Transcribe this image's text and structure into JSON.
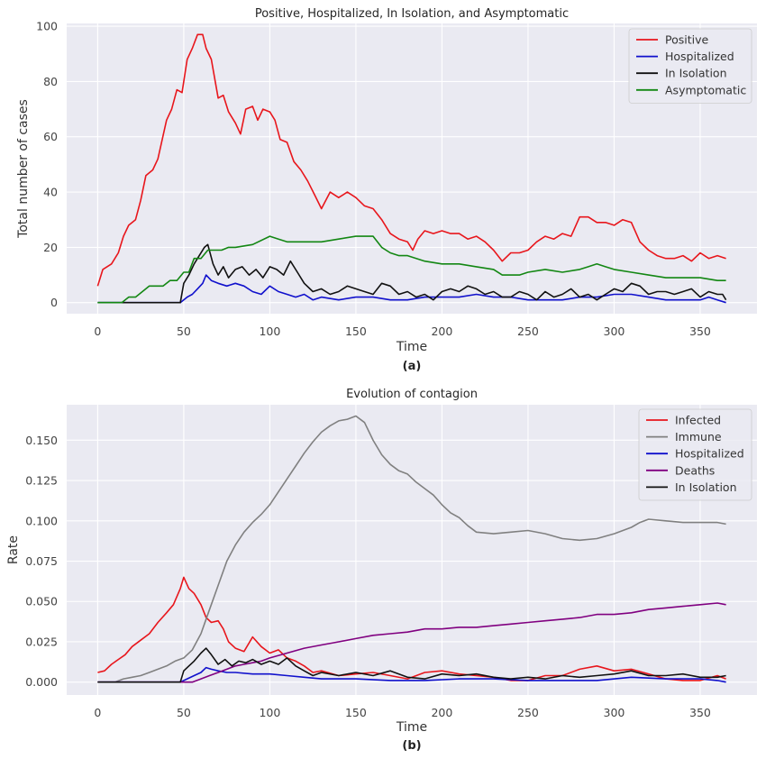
{
  "chart_data": [
    {
      "type": "line",
      "title": "Positive, Hospitalized, In Isolation, and Asymptomatic",
      "xlabel": "Time",
      "ylabel": "Total number of cases",
      "caption": "(a)",
      "xlim": [
        -18,
        383
      ],
      "ylim": [
        -4,
        101
      ],
      "xticks": [
        0,
        50,
        100,
        150,
        200,
        250,
        300,
        350
      ],
      "yticks": [
        0,
        20,
        40,
        60,
        80,
        100
      ],
      "ytick_labels": [
        "0",
        "20",
        "40",
        "60",
        "80",
        "100"
      ],
      "legend_position": "upper right",
      "grid": true,
      "series": [
        {
          "name": "Positive",
          "color": "#e8161c",
          "x": [
            0,
            3,
            8,
            12,
            15,
            18,
            22,
            25,
            28,
            32,
            35,
            40,
            43,
            46,
            49,
            52,
            55,
            58,
            61,
            63,
            66,
            70,
            73,
            76,
            80,
            83,
            86,
            90,
            93,
            96,
            100,
            103,
            106,
            110,
            114,
            118,
            122,
            126,
            130,
            135,
            140,
            145,
            150,
            155,
            160,
            165,
            170,
            175,
            180,
            183,
            186,
            190,
            195,
            200,
            205,
            210,
            215,
            220,
            225,
            230,
            235,
            240,
            245,
            250,
            255,
            260,
            265,
            270,
            275,
            280,
            285,
            290,
            295,
            300,
            305,
            310,
            315,
            320,
            325,
            330,
            335,
            340,
            345,
            350,
            355,
            360,
            365
          ],
          "y": [
            6,
            12,
            14,
            18,
            24,
            28,
            30,
            37,
            46,
            48,
            52,
            66,
            70,
            77,
            76,
            88,
            92,
            97,
            97,
            92,
            88,
            74,
            75,
            69,
            65,
            61,
            70,
            71,
            66,
            70,
            69,
            66,
            59,
            58,
            51,
            48,
            44,
            39,
            34,
            40,
            38,
            40,
            38,
            35,
            34,
            30,
            25,
            23,
            22,
            19,
            23,
            26,
            25,
            26,
            25,
            25,
            23,
            24,
            22,
            19,
            15,
            18,
            18,
            19,
            22,
            24,
            23,
            25,
            24,
            31,
            31,
            29,
            29,
            28,
            30,
            29,
            22,
            19,
            17,
            16,
            16,
            17,
            15,
            18,
            16,
            17,
            16
          ]
        },
        {
          "name": "Hospitalized",
          "color": "#1010cc",
          "x": [
            0,
            48,
            52,
            55,
            58,
            61,
            63,
            66,
            70,
            75,
            80,
            85,
            90,
            95,
            100,
            105,
            110,
            115,
            120,
            125,
            130,
            140,
            150,
            160,
            170,
            180,
            190,
            200,
            210,
            220,
            230,
            240,
            250,
            260,
            270,
            280,
            290,
            300,
            310,
            320,
            330,
            340,
            350,
            355,
            360,
            365
          ],
          "y": [
            0,
            0,
            2,
            3,
            5,
            7,
            10,
            8,
            7,
            6,
            7,
            6,
            4,
            3,
            6,
            4,
            3,
            2,
            3,
            1,
            2,
            1,
            2,
            2,
            1,
            1,
            2,
            2,
            2,
            3,
            2,
            2,
            1,
            1,
            1,
            2,
            2,
            3,
            3,
            2,
            1,
            1,
            1,
            2,
            1,
            0
          ]
        },
        {
          "name": "In Isolation",
          "color": "#111111",
          "x": [
            0,
            48,
            50,
            53,
            56,
            59,
            62,
            64,
            67,
            70,
            73,
            76,
            80,
            84,
            88,
            92,
            96,
            100,
            104,
            108,
            112,
            116,
            120,
            125,
            130,
            135,
            140,
            145,
            150,
            155,
            160,
            165,
            170,
            175,
            180,
            185,
            190,
            195,
            200,
            205,
            210,
            215,
            220,
            225,
            230,
            235,
            240,
            245,
            250,
            255,
            260,
            265,
            270,
            275,
            280,
            285,
            290,
            295,
            300,
            305,
            310,
            315,
            320,
            325,
            330,
            335,
            340,
            345,
            350,
            355,
            360,
            363,
            365
          ],
          "y": [
            0,
            0,
            7,
            10,
            14,
            17,
            20,
            21,
            14,
            10,
            13,
            9,
            12,
            13,
            10,
            12,
            9,
            13,
            12,
            10,
            15,
            11,
            7,
            4,
            5,
            3,
            4,
            6,
            5,
            4,
            3,
            7,
            6,
            3,
            4,
            2,
            3,
            1,
            4,
            5,
            4,
            6,
            5,
            3,
            4,
            2,
            2,
            4,
            3,
            1,
            4,
            2,
            3,
            5,
            2,
            3,
            1,
            3,
            5,
            4,
            7,
            6,
            3,
            4,
            4,
            3,
            4,
            5,
            2,
            4,
            3,
            3,
            1
          ]
        },
        {
          "name": "Asymptomatic",
          "color": "#138713",
          "x": [
            0,
            14,
            18,
            22,
            26,
            30,
            34,
            38,
            42,
            46,
            50,
            53,
            56,
            60,
            64,
            68,
            72,
            76,
            80,
            90,
            100,
            105,
            110,
            120,
            130,
            140,
            150,
            160,
            165,
            170,
            175,
            180,
            190,
            200,
            210,
            220,
            230,
            235,
            240,
            245,
            250,
            260,
            270,
            280,
            285,
            290,
            295,
            300,
            310,
            320,
            330,
            340,
            350,
            360,
            365
          ],
          "y": [
            0,
            0,
            2,
            2,
            4,
            6,
            6,
            6,
            8,
            8,
            11,
            11,
            16,
            16,
            19,
            19,
            19,
            20,
            20,
            21,
            24,
            23,
            22,
            22,
            22,
            23,
            24,
            24,
            20,
            18,
            17,
            17,
            15,
            14,
            14,
            13,
            12,
            10,
            10,
            10,
            11,
            12,
            11,
            12,
            13,
            14,
            13,
            12,
            11,
            10,
            9,
            9,
            9,
            8,
            8
          ]
        }
      ]
    },
    {
      "type": "line",
      "title": "Evolution of contagion",
      "xlabel": "Time",
      "ylabel": "Rate",
      "caption": "(b)",
      "xlim": [
        -18,
        383
      ],
      "ylim": [
        -0.008,
        0.172
      ],
      "xticks": [
        0,
        50,
        100,
        150,
        200,
        250,
        300,
        350
      ],
      "yticks": [
        0,
        0.025,
        0.05,
        0.075,
        0.1,
        0.125,
        0.15
      ],
      "ytick_labels": [
        "0.000",
        "0.025",
        "0.050",
        "0.075",
        "0.100",
        "0.125",
        "0.150"
      ],
      "legend_position": "upper right",
      "grid": true,
      "series": [
        {
          "name": "Infected",
          "color": "#e8161c",
          "x": [
            0,
            4,
            8,
            12,
            16,
            20,
            25,
            30,
            35,
            40,
            44,
            48,
            50,
            53,
            56,
            60,
            63,
            66,
            70,
            73,
            76,
            80,
            85,
            90,
            95,
            100,
            105,
            110,
            115,
            120,
            125,
            130,
            140,
            150,
            160,
            170,
            180,
            190,
            200,
            210,
            220,
            230,
            240,
            250,
            260,
            270,
            280,
            290,
            300,
            310,
            320,
            330,
            340,
            350,
            360,
            365
          ],
          "y": [
            0.006,
            0.007,
            0.011,
            0.014,
            0.017,
            0.022,
            0.026,
            0.03,
            0.037,
            0.043,
            0.048,
            0.058,
            0.065,
            0.058,
            0.055,
            0.048,
            0.04,
            0.037,
            0.038,
            0.033,
            0.025,
            0.021,
            0.019,
            0.028,
            0.022,
            0.018,
            0.02,
            0.015,
            0.013,
            0.01,
            0.006,
            0.007,
            0.004,
            0.005,
            0.006,
            0.004,
            0.002,
            0.006,
            0.007,
            0.005,
            0.004,
            0.003,
            0.001,
            0.001,
            0.004,
            0.004,
            0.008,
            0.01,
            0.007,
            0.008,
            0.005,
            0.002,
            0.001,
            0.001,
            0.004,
            0.002
          ]
        },
        {
          "name": "Immune",
          "color": "#808080",
          "x": [
            0,
            10,
            15,
            20,
            25,
            30,
            35,
            40,
            45,
            50,
            55,
            60,
            65,
            70,
            75,
            80,
            85,
            90,
            95,
            100,
            105,
            110,
            115,
            120,
            125,
            130,
            135,
            140,
            145,
            150,
            155,
            160,
            165,
            170,
            175,
            180,
            185,
            190,
            195,
            200,
            205,
            210,
            215,
            220,
            230,
            240,
            250,
            260,
            270,
            280,
            290,
            300,
            310,
            315,
            320,
            330,
            340,
            350,
            360,
            365
          ],
          "y": [
            0,
            0,
            0.002,
            0.003,
            0.004,
            0.006,
            0.008,
            0.01,
            0.013,
            0.015,
            0.02,
            0.03,
            0.045,
            0.06,
            0.075,
            0.085,
            0.093,
            0.099,
            0.104,
            0.11,
            0.118,
            0.126,
            0.134,
            0.142,
            0.149,
            0.155,
            0.159,
            0.162,
            0.163,
            0.165,
            0.161,
            0.15,
            0.141,
            0.135,
            0.131,
            0.129,
            0.124,
            0.12,
            0.116,
            0.11,
            0.105,
            0.102,
            0.097,
            0.093,
            0.092,
            0.093,
            0.094,
            0.092,
            0.089,
            0.088,
            0.089,
            0.092,
            0.096,
            0.099,
            0.101,
            0.1,
            0.099,
            0.099,
            0.099,
            0.098
          ]
        },
        {
          "name": "Hospitalized",
          "color": "#1010cc",
          "x": [
            0,
            48,
            52,
            56,
            60,
            63,
            66,
            70,
            75,
            80,
            90,
            100,
            110,
            120,
            130,
            150,
            170,
            190,
            210,
            230,
            250,
            270,
            290,
            310,
            330,
            350,
            360,
            365
          ],
          "y": [
            0,
            0,
            0.002,
            0.004,
            0.006,
            0.009,
            0.008,
            0.007,
            0.006,
            0.006,
            0.005,
            0.005,
            0.004,
            0.003,
            0.002,
            0.002,
            0.001,
            0.001,
            0.002,
            0.002,
            0.001,
            0.001,
            0.001,
            0.003,
            0.002,
            0.002,
            0.001,
            0
          ]
        },
        {
          "name": "Deaths",
          "color": "#800080",
          "x": [
            0,
            55,
            60,
            65,
            70,
            75,
            80,
            85,
            90,
            95,
            100,
            110,
            120,
            130,
            140,
            150,
            160,
            170,
            180,
            190,
            200,
            210,
            220,
            230,
            240,
            250,
            260,
            270,
            280,
            290,
            300,
            310,
            320,
            330,
            340,
            350,
            360,
            365
          ],
          "y": [
            0,
            0,
            0.002,
            0.004,
            0.006,
            0.008,
            0.01,
            0.011,
            0.012,
            0.013,
            0.015,
            0.018,
            0.021,
            0.023,
            0.025,
            0.027,
            0.029,
            0.03,
            0.031,
            0.033,
            0.033,
            0.034,
            0.034,
            0.035,
            0.036,
            0.037,
            0.038,
            0.039,
            0.04,
            0.042,
            0.042,
            0.043,
            0.045,
            0.046,
            0.047,
            0.048,
            0.049,
            0.048
          ]
        },
        {
          "name": "In Isolation",
          "color": "#111111",
          "x": [
            0,
            48,
            50,
            53,
            56,
            60,
            63,
            66,
            70,
            74,
            78,
            82,
            86,
            90,
            95,
            100,
            105,
            110,
            115,
            120,
            125,
            130,
            140,
            150,
            160,
            170,
            180,
            190,
            200,
            210,
            220,
            230,
            240,
            250,
            260,
            270,
            280,
            290,
            300,
            310,
            320,
            330,
            340,
            350,
            360,
            365
          ],
          "y": [
            0,
            0,
            0.007,
            0.01,
            0.013,
            0.018,
            0.021,
            0.017,
            0.011,
            0.014,
            0.01,
            0.013,
            0.012,
            0.014,
            0.011,
            0.013,
            0.011,
            0.015,
            0.01,
            0.007,
            0.004,
            0.006,
            0.004,
            0.006,
            0.004,
            0.007,
            0.003,
            0.002,
            0.005,
            0.004,
            0.005,
            0.003,
            0.002,
            0.003,
            0.002,
            0.004,
            0.003,
            0.004,
            0.005,
            0.007,
            0.004,
            0.004,
            0.005,
            0.003,
            0.003,
            0.004
          ]
        }
      ]
    }
  ]
}
